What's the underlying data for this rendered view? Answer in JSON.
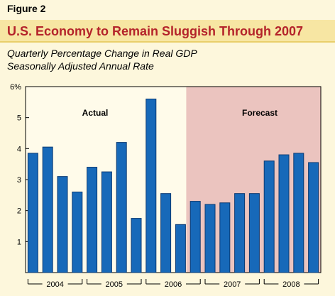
{
  "figure_label": "Figure 2",
  "title": "U.S. Economy to Remain Sluggish Through 2007",
  "subtitle_lines": [
    "Quarterly Percentage Change in Real GDP",
    "Seasonally Adjusted Annual Rate"
  ],
  "colors": {
    "bar": "#1769b9",
    "bar_stroke": "#0c3a72",
    "forecast_shade": "#ebc4bf",
    "plot_bg": "#fffbea",
    "title_red": "#b4232a"
  },
  "chart_data": {
    "type": "bar",
    "y_ticks": [
      "6%",
      "5",
      "4",
      "3",
      "2",
      "1"
    ],
    "ylim": [
      0,
      6
    ],
    "values": [
      3.85,
      4.05,
      3.1,
      2.6,
      3.4,
      3.25,
      4.2,
      1.75,
      5.6,
      2.55,
      1.55,
      2.3,
      2.2,
      2.25,
      2.55,
      2.55,
      3.6,
      3.8,
      3.85,
      3.55
    ],
    "year_labels": [
      "2004",
      "2005",
      "2006",
      "2007",
      "2008"
    ],
    "forecast_start_index": 11,
    "region_labels": {
      "actual": "Actual",
      "forecast": "Forecast"
    }
  }
}
